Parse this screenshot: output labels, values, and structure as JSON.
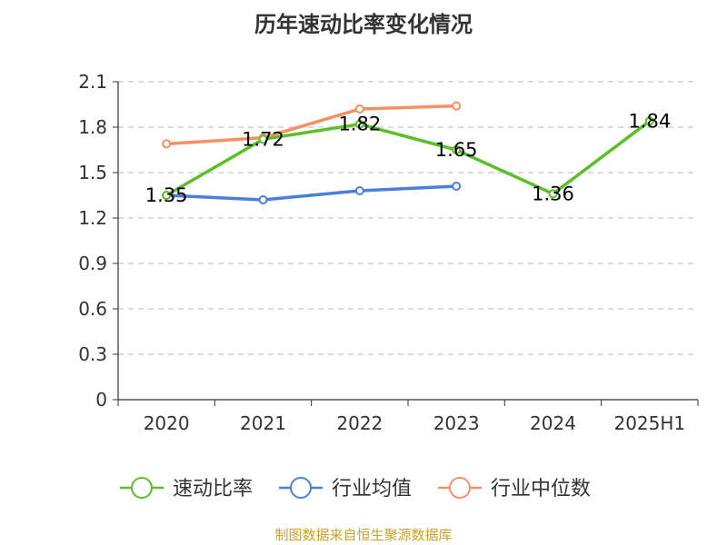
{
  "chart_data": {
    "type": "line",
    "title": "历年速动比率变化情况",
    "xlabel": "",
    "ylabel": "",
    "categories": [
      "2020",
      "2021",
      "2022",
      "2023",
      "2024",
      "2025H1"
    ],
    "y_ticks": [
      "0",
      "0.3",
      "0.6",
      "0.9",
      "1.2",
      "1.5",
      "1.8",
      "2.1"
    ],
    "ylim": [
      0,
      2.1
    ],
    "grid": true,
    "legend_position": "bottom",
    "series": [
      {
        "name": "速动比率",
        "color": "#5bbf2a",
        "values": [
          1.35,
          1.72,
          1.82,
          1.65,
          1.36,
          1.84
        ],
        "labels": [
          "1.35",
          "1.72",
          "1.82",
          "1.65",
          "1.36",
          "1.84"
        ],
        "show_labels": true
      },
      {
        "name": "行业均值",
        "color": "#4a7fdc",
        "values": [
          1.35,
          1.32,
          1.38,
          1.41,
          null,
          null
        ],
        "show_labels": false
      },
      {
        "name": "行业中位数",
        "color": "#f59161",
        "values": [
          1.69,
          1.73,
          1.92,
          1.94,
          null,
          null
        ],
        "show_labels": false
      }
    ]
  },
  "source_text": "制图数据来自恒生聚源数据库"
}
